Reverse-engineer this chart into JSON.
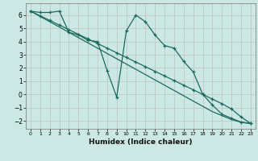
{
  "xlabel": "Humidex (Indice chaleur)",
  "bg_color": "#cce8e4",
  "grid_color": "#b8b8b8",
  "line_color": "#1a6b5e",
  "xlim": [
    -0.5,
    23.5
  ],
  "ylim": [
    -2.6,
    6.9
  ],
  "yticks": [
    -2,
    -1,
    0,
    1,
    2,
    3,
    4,
    5,
    6
  ],
  "xticks": [
    0,
    1,
    2,
    3,
    4,
    5,
    6,
    7,
    8,
    9,
    10,
    11,
    12,
    13,
    14,
    15,
    16,
    17,
    18,
    19,
    20,
    21,
    22,
    23
  ],
  "jagged_x": [
    0,
    1,
    2,
    3,
    4,
    5,
    6,
    7,
    8,
    9,
    10,
    11,
    12,
    13,
    14,
    15,
    16,
    17,
    18,
    19,
    20,
    21,
    22,
    23
  ],
  "jagged_y": [
    6.3,
    6.2,
    6.2,
    6.3,
    4.7,
    4.5,
    4.1,
    4.0,
    1.8,
    -0.2,
    4.8,
    6.0,
    5.5,
    4.5,
    3.7,
    3.5,
    2.5,
    1.7,
    0.0,
    -0.8,
    -1.5,
    -1.8,
    -2.1,
    -2.2
  ],
  "linear1_x": [
    0,
    1,
    2,
    3,
    4,
    5,
    6,
    7,
    8,
    9,
    10,
    11,
    12,
    13,
    14,
    15,
    16,
    17,
    18,
    19,
    20,
    21,
    22,
    23
  ],
  "linear1_y": [
    6.3,
    5.95,
    5.6,
    5.25,
    4.9,
    4.55,
    4.2,
    3.85,
    3.5,
    3.15,
    2.8,
    2.45,
    2.1,
    1.75,
    1.4,
    1.05,
    0.7,
    0.35,
    0.0,
    -0.35,
    -0.7,
    -1.1,
    -1.7,
    -2.2
  ],
  "linear2_x": [
    0,
    1,
    2,
    3,
    4,
    5,
    6,
    7,
    8,
    9,
    10,
    11,
    12,
    13,
    14,
    15,
    16,
    17,
    18,
    19,
    20,
    21,
    22,
    23
  ],
  "linear2_y": [
    6.3,
    5.9,
    5.5,
    5.1,
    4.7,
    4.3,
    3.9,
    3.5,
    3.1,
    2.7,
    2.3,
    1.9,
    1.5,
    1.1,
    0.7,
    0.3,
    -0.1,
    -0.5,
    -0.9,
    -1.3,
    -1.6,
    -1.9,
    -2.1,
    -2.2
  ]
}
